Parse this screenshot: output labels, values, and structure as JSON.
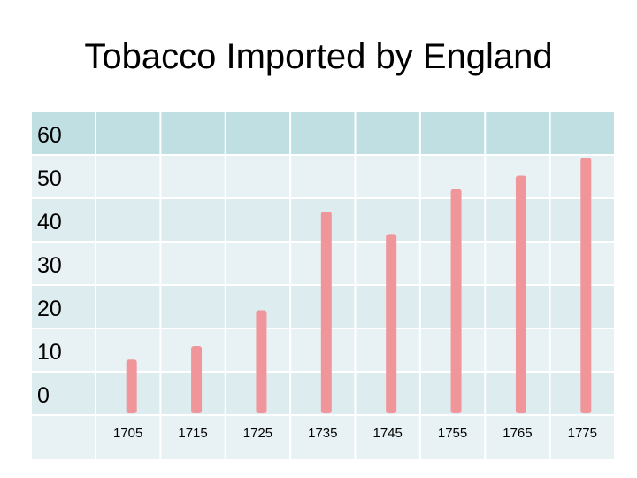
{
  "title": "Tobacco Imported by England",
  "colors": {
    "header_row": "#bfdfe2",
    "body_row_a": "#e8f2f4",
    "body_row_b": "#ddecef",
    "bar": "#f0969b",
    "bar_highlight": "#ea7278",
    "grid": "#ffffff"
  },
  "chart_data": {
    "type": "bar",
    "title": "Tobacco Imported by England",
    "xlabel": "",
    "ylabel": "",
    "ylim": [
      0,
      60
    ],
    "y_ticks": [
      "60",
      "50",
      "40",
      "30",
      "20",
      "10",
      "0"
    ],
    "categories": [
      "1705",
      "1715",
      "1725",
      "1735",
      "1745",
      "1755",
      "1765",
      "1775"
    ],
    "values": [
      12,
      15,
      23,
      45,
      40,
      50,
      53,
      57
    ],
    "grid": true,
    "legend": "none"
  }
}
